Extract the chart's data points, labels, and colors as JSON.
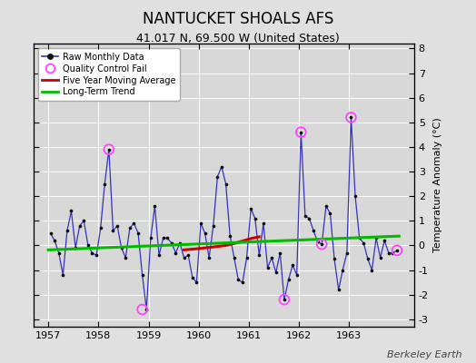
{
  "title": "NANTUCKET SHOALS AFS",
  "subtitle": "41.017 N, 69.500 W (United States)",
  "credit": "Berkeley Earth",
  "ylabel": "Temperature Anomaly (°C)",
  "xlim": [
    1956.7,
    1964.3
  ],
  "ylim": [
    -3.3,
    8.2
  ],
  "yticks": [
    -3,
    -2,
    -1,
    0,
    1,
    2,
    3,
    4,
    5,
    6,
    7,
    8
  ],
  "xticks": [
    1957,
    1958,
    1959,
    1960,
    1961,
    1962,
    1963
  ],
  "bg_color": "#e0e0e0",
  "plot_bg_color": "#d8d8d8",
  "raw_x": [
    1957.042,
    1957.125,
    1957.208,
    1957.292,
    1957.375,
    1957.458,
    1957.542,
    1957.625,
    1957.708,
    1957.792,
    1957.875,
    1957.958,
    1958.042,
    1958.125,
    1958.208,
    1958.292,
    1958.375,
    1958.458,
    1958.542,
    1958.625,
    1958.708,
    1958.792,
    1958.875,
    1958.958,
    1959.042,
    1959.125,
    1959.208,
    1959.292,
    1959.375,
    1959.458,
    1959.542,
    1959.625,
    1959.708,
    1959.792,
    1959.875,
    1959.958,
    1960.042,
    1960.125,
    1960.208,
    1960.292,
    1960.375,
    1960.458,
    1960.542,
    1960.625,
    1960.708,
    1960.792,
    1960.875,
    1960.958,
    1961.042,
    1961.125,
    1961.208,
    1961.292,
    1961.375,
    1961.458,
    1961.542,
    1961.625,
    1961.708,
    1961.792,
    1961.875,
    1961.958,
    1962.042,
    1962.125,
    1962.208,
    1962.292,
    1962.375,
    1962.458,
    1962.542,
    1962.625,
    1962.708,
    1962.792,
    1962.875,
    1962.958,
    1963.042,
    1963.125,
    1963.208,
    1963.292,
    1963.375,
    1963.458,
    1963.542,
    1963.625,
    1963.708,
    1963.792,
    1963.875,
    1963.958
  ],
  "raw_y": [
    0.5,
    0.2,
    -0.3,
    -1.2,
    0.6,
    1.4,
    -0.1,
    0.8,
    1.0,
    0.0,
    -0.3,
    -0.4,
    0.7,
    2.5,
    3.9,
    0.6,
    0.8,
    -0.1,
    -0.5,
    0.7,
    0.9,
    0.5,
    -1.2,
    -2.6,
    0.3,
    1.6,
    -0.4,
    0.3,
    0.3,
    0.1,
    -0.3,
    0.1,
    -0.5,
    -0.4,
    -1.3,
    -1.5,
    0.9,
    0.5,
    -0.5,
    0.8,
    2.8,
    3.2,
    2.5,
    0.4,
    -0.5,
    -1.4,
    -1.5,
    -0.5,
    1.5,
    1.1,
    -0.4,
    0.9,
    -0.9,
    -0.5,
    -1.1,
    -0.3,
    -2.2,
    -1.4,
    -0.8,
    -1.2,
    4.6,
    1.2,
    1.1,
    0.6,
    0.15,
    0.05,
    1.6,
    1.3,
    -0.55,
    -1.8,
    -1.0,
    -0.3,
    5.2,
    2.0,
    0.3,
    0.1,
    -0.55,
    -1.0,
    0.3,
    -0.5,
    0.2,
    -0.3,
    -0.3,
    -0.2
  ],
  "qc_fail_x": [
    1958.208,
    1958.875,
    1961.708,
    1962.042,
    1962.458,
    1963.042,
    1963.958
  ],
  "qc_fail_y": [
    3.9,
    -2.6,
    -2.2,
    4.6,
    0.05,
    5.2,
    -0.2
  ],
  "moving_avg_x": [
    1959.708,
    1959.875,
    1960.042,
    1960.208,
    1960.375,
    1960.542,
    1960.708,
    1960.875,
    1961.042,
    1961.208
  ],
  "moving_avg_y": [
    -0.18,
    -0.15,
    -0.12,
    -0.08,
    -0.04,
    0.0,
    0.08,
    0.18,
    0.28,
    0.35
  ],
  "trend_x": [
    1957.0,
    1964.0
  ],
  "trend_y": [
    -0.18,
    0.38
  ],
  "line_color": "#3333bb",
  "marker_color": "#111111",
  "qc_color": "#ff44ff",
  "ma_color": "#cc0000",
  "trend_color": "#00bb00",
  "grid_color": "#ffffff",
  "title_fontsize": 12,
  "subtitle_fontsize": 9,
  "credit_fontsize": 8,
  "tick_fontsize": 8,
  "ylabel_fontsize": 8
}
